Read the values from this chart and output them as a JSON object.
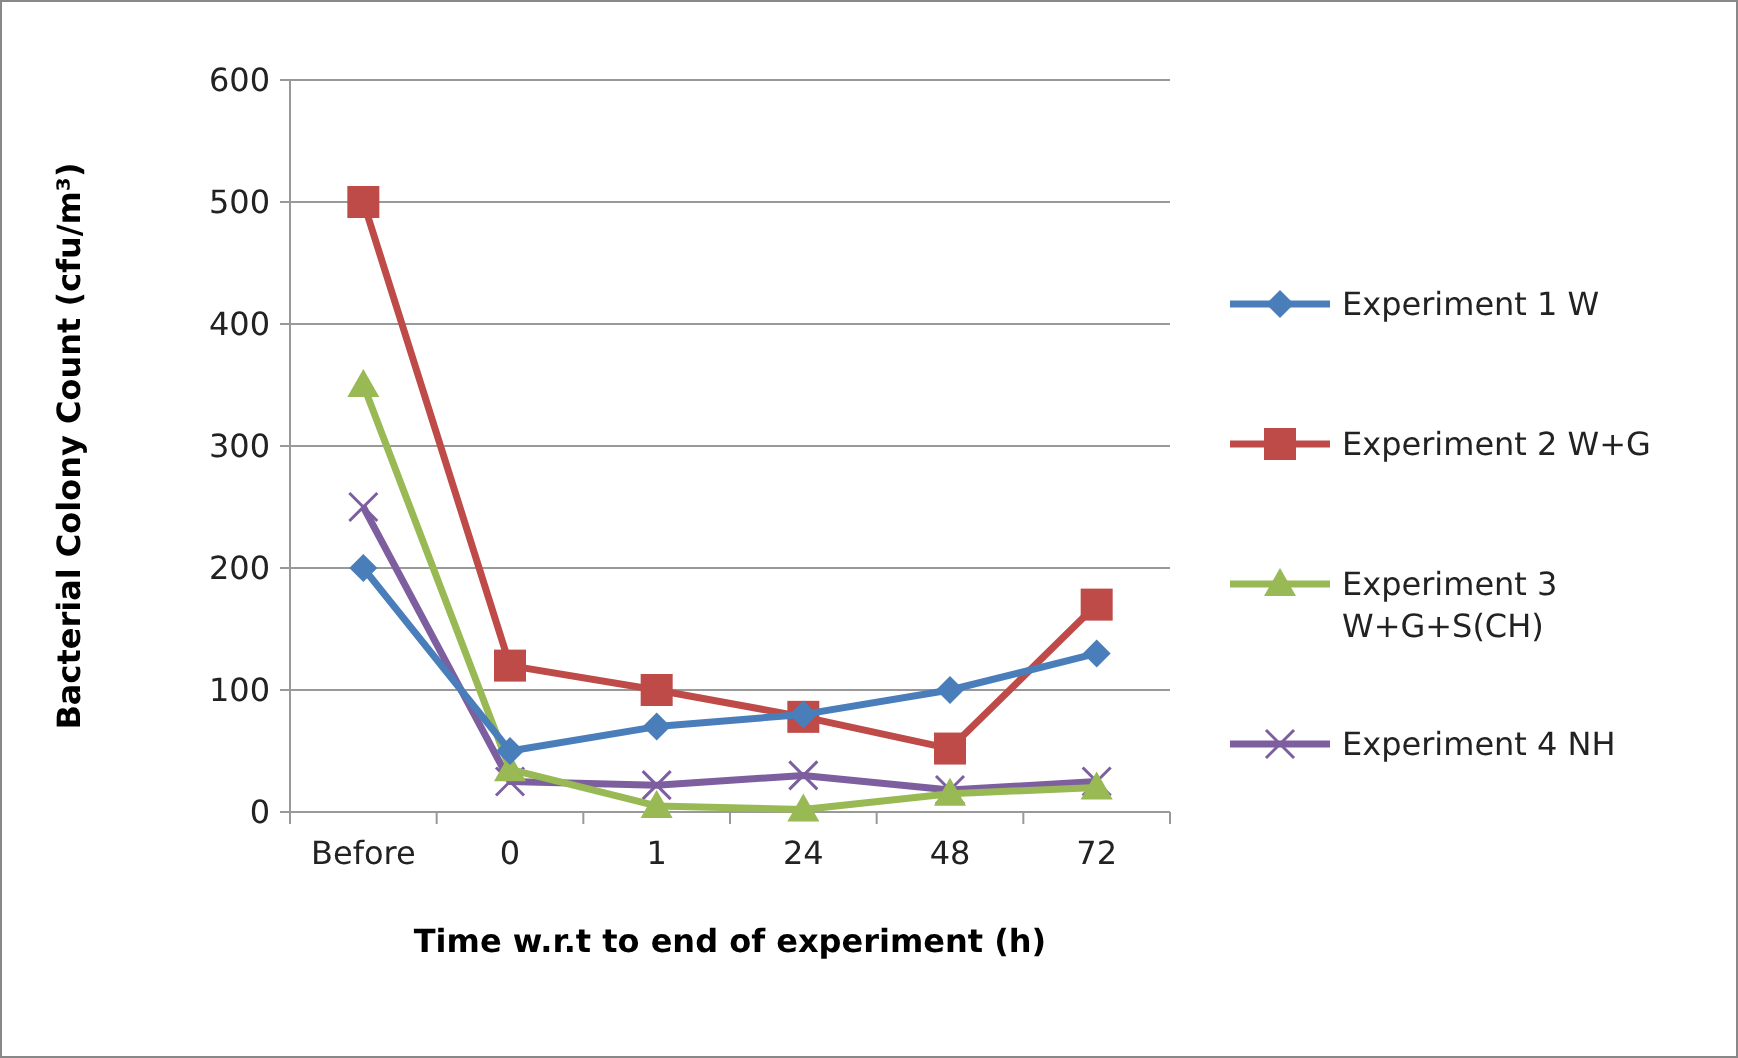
{
  "chart_data": {
    "type": "line",
    "xlabel": "Time w.r.t to end of experiment (h)",
    "ylabel": "Bacterial Colony Count  (cfu/m³)",
    "categories": [
      "Before",
      "0",
      "1",
      "24",
      "48",
      "72"
    ],
    "ylim": [
      0,
      600
    ],
    "yticks": [
      0,
      100,
      200,
      300,
      400,
      500,
      600
    ],
    "grid": "y",
    "legend": "right",
    "series": [
      {
        "name": "Experiment 1 W",
        "color": "#4a7ebb",
        "marker": "diamond",
        "values": [
          200,
          50,
          70,
          80,
          100,
          130
        ]
      },
      {
        "name": "Experiment 2 W+G",
        "color": "#be4b48",
        "marker": "square",
        "values": [
          500,
          120,
          100,
          78,
          52,
          170
        ]
      },
      {
        "name": "Experiment 3 W+G+S(CH)",
        "color": "#98b954",
        "marker": "triangle",
        "values": [
          350,
          35,
          5,
          2,
          15,
          20
        ]
      },
      {
        "name": "Experiment 4 NH",
        "color": "#7d5fa0",
        "marker": "cross",
        "values": [
          250,
          25,
          22,
          30,
          18,
          25
        ]
      }
    ]
  }
}
